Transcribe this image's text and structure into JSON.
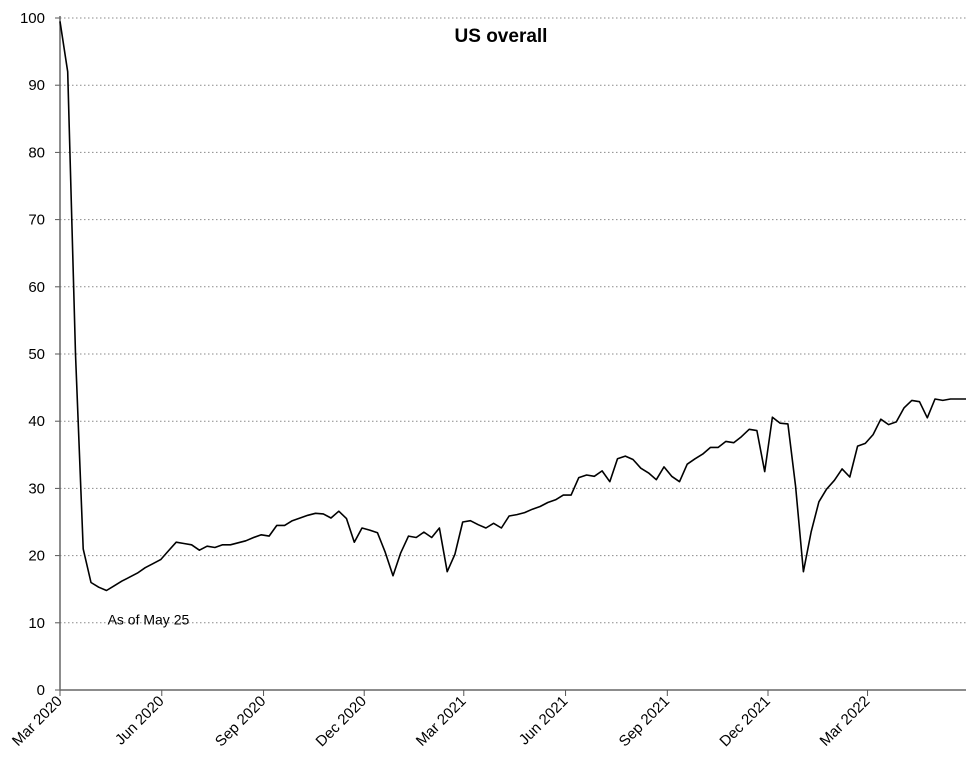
{
  "chart_data": {
    "type": "line",
    "title": "US overall",
    "xlabel": "",
    "ylabel": "",
    "ylim": [
      0,
      100
    ],
    "y_ticks": [
      0,
      10,
      20,
      30,
      40,
      50,
      60,
      70,
      80,
      90,
      100
    ],
    "x_range": [
      "2020-03-01",
      "2022-05-29"
    ],
    "x_ticks": [
      {
        "date": "2020-03-01",
        "label": "Mar 2020"
      },
      {
        "date": "2020-06-01",
        "label": "Jun 2020"
      },
      {
        "date": "2020-09-01",
        "label": "Sep 2020"
      },
      {
        "date": "2020-12-01",
        "label": "Dec 2020"
      },
      {
        "date": "2021-03-01",
        "label": "Mar 2021"
      },
      {
        "date": "2021-06-01",
        "label": "Jun 2021"
      },
      {
        "date": "2021-09-01",
        "label": "Sep 2021"
      },
      {
        "date": "2021-12-01",
        "label": "Dec 2021"
      },
      {
        "date": "2022-03-01",
        "label": "Mar 2022"
      }
    ],
    "grid": "horizontal dotted",
    "legend": "none",
    "annotation": {
      "text": "As of May 25",
      "x": "2020-04-13",
      "y": 10.5
    },
    "color": "#000000",
    "series": [
      {
        "x": [
          "2020-03-01",
          "2020-03-08",
          "2020-03-15",
          "2020-03-22",
          "2020-03-29",
          "2020-04-05",
          "2020-04-12",
          "2020-04-19",
          "2020-04-26",
          "2020-05-03",
          "2020-05-10",
          "2020-05-17",
          "2020-05-24",
          "2020-05-31",
          "2020-06-07",
          "2020-06-14",
          "2020-06-21",
          "2020-06-28",
          "2020-07-05",
          "2020-07-12",
          "2020-07-19",
          "2020-07-26",
          "2020-08-02",
          "2020-08-09",
          "2020-08-16",
          "2020-08-23",
          "2020-08-30",
          "2020-09-06",
          "2020-09-13",
          "2020-09-20",
          "2020-09-27",
          "2020-10-04",
          "2020-10-11",
          "2020-10-18",
          "2020-10-25",
          "2020-11-01",
          "2020-11-08",
          "2020-11-15",
          "2020-11-22",
          "2020-11-29",
          "2020-12-06",
          "2020-12-13",
          "2020-12-20",
          "2020-12-27",
          "2021-01-03",
          "2021-01-10",
          "2021-01-17",
          "2021-01-24",
          "2021-01-31",
          "2021-02-07",
          "2021-02-14",
          "2021-02-21",
          "2021-02-28",
          "2021-03-07",
          "2021-03-14",
          "2021-03-21",
          "2021-03-28",
          "2021-04-04",
          "2021-04-11",
          "2021-04-18",
          "2021-04-25",
          "2021-05-02",
          "2021-05-09",
          "2021-05-16",
          "2021-05-23",
          "2021-05-30",
          "2021-06-06",
          "2021-06-13",
          "2021-06-20",
          "2021-06-27",
          "2021-07-04",
          "2021-07-11",
          "2021-07-18",
          "2021-07-25",
          "2021-08-01",
          "2021-08-08",
          "2021-08-15",
          "2021-08-22",
          "2021-08-29",
          "2021-09-05",
          "2021-09-12",
          "2021-09-19",
          "2021-09-26",
          "2021-10-03",
          "2021-10-10",
          "2021-10-17",
          "2021-10-24",
          "2021-10-31",
          "2021-11-07",
          "2021-11-14",
          "2021-11-21",
          "2021-11-28",
          "2021-12-05",
          "2021-12-12",
          "2021-12-19",
          "2021-12-26",
          "2022-01-02",
          "2022-01-09",
          "2022-01-16",
          "2022-01-23",
          "2022-01-30",
          "2022-02-06",
          "2022-02-13",
          "2022-02-20",
          "2022-02-27",
          "2022-03-06",
          "2022-03-13",
          "2022-03-20",
          "2022-03-27",
          "2022-04-03",
          "2022-04-10",
          "2022-04-17",
          "2022-04-24",
          "2022-05-01",
          "2022-05-08",
          "2022-05-15",
          "2022-05-22",
          "2022-05-29"
        ],
        "y": [
          99.5,
          92,
          50,
          21,
          16,
          15.3,
          14.8,
          15.5,
          16.2,
          16.8,
          17.4,
          18.2,
          18.8,
          19.4,
          20.7,
          22,
          21.8,
          21.6,
          20.8,
          21.4,
          21.2,
          21.6,
          21.6,
          21.9,
          22.2,
          22.7,
          23.1,
          22.9,
          24.5,
          24.5,
          25.2,
          25.6,
          26,
          26.3,
          26.2,
          25.6,
          26.6,
          25.5,
          22,
          24.1,
          23.8,
          23.4,
          20.5,
          17,
          20.4,
          22.9,
          22.7,
          23.5,
          22.7,
          24.1,
          17.6,
          20.2,
          25,
          25.2,
          24.6,
          24.1,
          24.8,
          24.1,
          25.9,
          26.1,
          26.4,
          26.9,
          27.3,
          27.9,
          28.3,
          29,
          29,
          31.6,
          32,
          31.8,
          32.6,
          31,
          34.4,
          34.8,
          34.3,
          33,
          32.3,
          31.3,
          33.2,
          31.8,
          31,
          33.6,
          34.4,
          35.1,
          36.1,
          36.1,
          37,
          36.8,
          37.7,
          38.8,
          38.6,
          32.5,
          40.6,
          39.7,
          39.6,
          30.3,
          17.6,
          23.5,
          28,
          29.9,
          31.2,
          32.9,
          31.7,
          36.3,
          36.7,
          38,
          40.3,
          39.5,
          39.9,
          42,
          43.1,
          42.9,
          40.5,
          43.3,
          43.1,
          43.3,
          43.3,
          43.3
        ]
      }
    ]
  }
}
